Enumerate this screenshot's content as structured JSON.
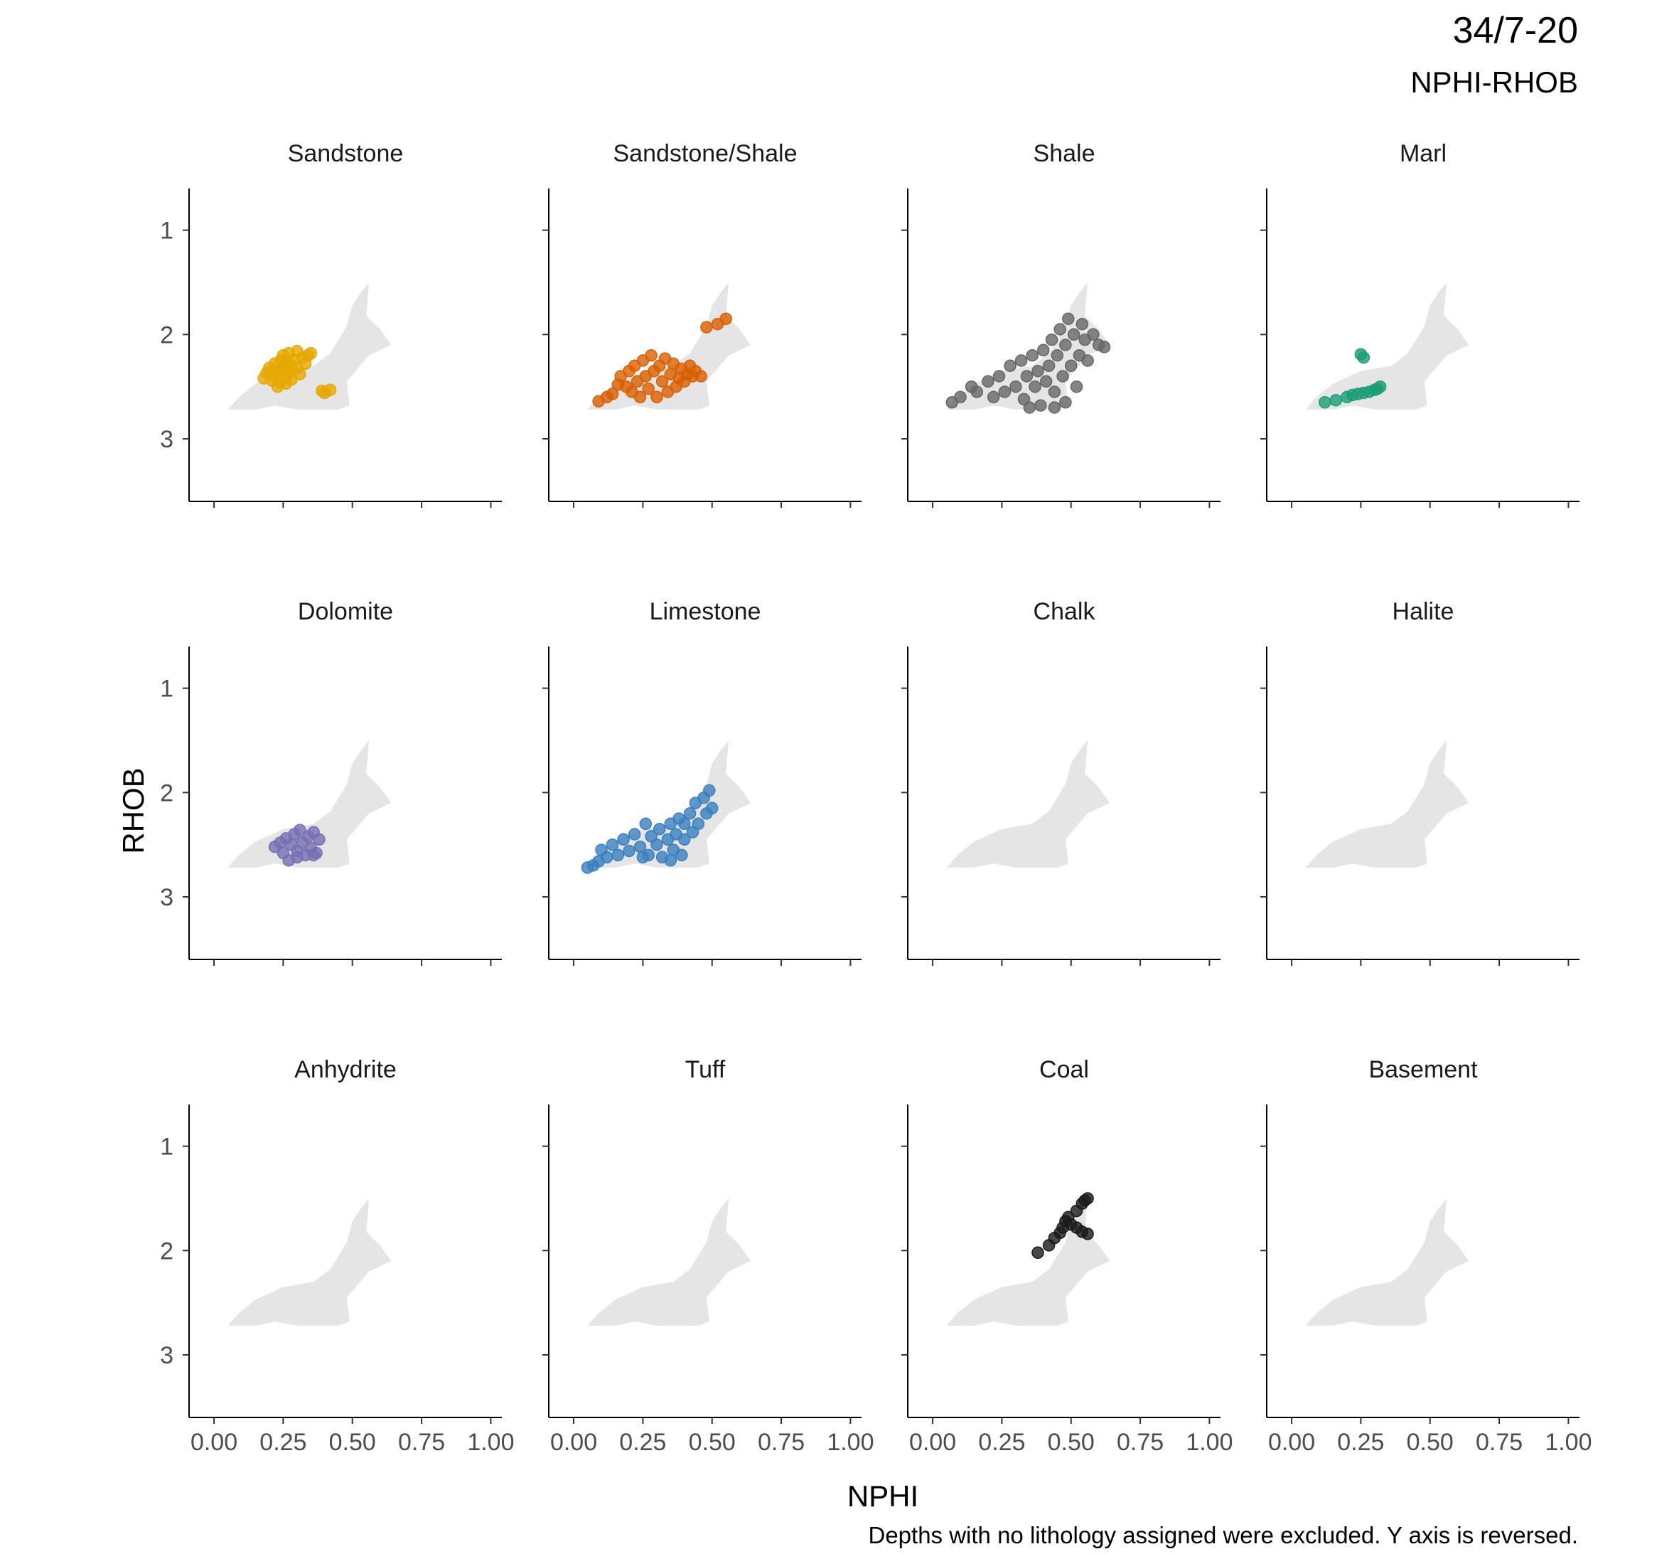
{
  "chart_data": {
    "type": "scatter",
    "title": "34/7-20",
    "subtitle": "NPHI-RHOB",
    "xlabel": "NPHI",
    "ylabel": "RHOB",
    "caption": "Depths with no lithology assigned were excluded. Y axis is reversed.",
    "xlim": [
      -0.09,
      1.04
    ],
    "ylim": [
      0.6,
      3.6
    ],
    "y_reversed": true,
    "x_ticks": [
      0.0,
      0.25,
      0.5,
      0.75,
      1.0
    ],
    "x_tick_labels": [
      "0.00",
      "0.25",
      "0.50",
      "0.75",
      "1.00"
    ],
    "y_ticks": [
      1,
      2,
      3
    ],
    "y_tick_labels": [
      "1",
      "2",
      "3"
    ],
    "grid": false,
    "background_color": "#e5e5e5",
    "background_extent": [
      [
        0.05,
        2.72
      ],
      [
        0.09,
        2.6
      ],
      [
        0.15,
        2.47
      ],
      [
        0.25,
        2.35
      ],
      [
        0.36,
        2.3
      ],
      [
        0.42,
        2.18
      ],
      [
        0.48,
        1.92
      ],
      [
        0.5,
        1.72
      ],
      [
        0.53,
        1.6
      ],
      [
        0.56,
        1.5
      ],
      [
        0.55,
        1.82
      ],
      [
        0.6,
        1.95
      ],
      [
        0.64,
        2.1
      ],
      [
        0.56,
        2.2
      ],
      [
        0.48,
        2.45
      ],
      [
        0.49,
        2.68
      ],
      [
        0.45,
        2.72
      ],
      [
        0.3,
        2.72
      ],
      [
        0.22,
        2.68
      ],
      [
        0.15,
        2.72
      ]
    ],
    "facets": [
      {
        "name": "Sandstone",
        "color": "#E6A800",
        "points": [
          [
            0.18,
            2.42
          ],
          [
            0.19,
            2.37
          ],
          [
            0.2,
            2.32
          ],
          [
            0.21,
            2.44
          ],
          [
            0.22,
            2.28
          ],
          [
            0.22,
            2.4
          ],
          [
            0.23,
            2.35
          ],
          [
            0.24,
            2.25
          ],
          [
            0.24,
            2.46
          ],
          [
            0.25,
            2.33
          ],
          [
            0.25,
            2.2
          ],
          [
            0.26,
            2.41
          ],
          [
            0.26,
            2.27
          ],
          [
            0.27,
            2.36
          ],
          [
            0.27,
            2.18
          ],
          [
            0.28,
            2.3
          ],
          [
            0.28,
            2.43
          ],
          [
            0.29,
            2.24
          ],
          [
            0.3,
            2.32
          ],
          [
            0.3,
            2.16
          ],
          [
            0.31,
            2.38
          ],
          [
            0.32,
            2.22
          ],
          [
            0.33,
            2.28
          ],
          [
            0.34,
            2.2
          ],
          [
            0.35,
            2.18
          ],
          [
            0.23,
            2.5
          ],
          [
            0.26,
            2.47
          ],
          [
            0.39,
            2.54
          ],
          [
            0.42,
            2.53
          ],
          [
            0.4,
            2.56
          ]
        ]
      },
      {
        "name": "Sandstone/Shale",
        "color": "#D95F02",
        "points": [
          [
            0.12,
            2.6
          ],
          [
            0.14,
            2.57
          ],
          [
            0.16,
            2.48
          ],
          [
            0.17,
            2.4
          ],
          [
            0.19,
            2.5
          ],
          [
            0.2,
            2.35
          ],
          [
            0.21,
            2.55
          ],
          [
            0.22,
            2.3
          ],
          [
            0.23,
            2.45
          ],
          [
            0.24,
            2.6
          ],
          [
            0.25,
            2.25
          ],
          [
            0.26,
            2.4
          ],
          [
            0.27,
            2.52
          ],
          [
            0.28,
            2.2
          ],
          [
            0.29,
            2.35
          ],
          [
            0.3,
            2.6
          ],
          [
            0.31,
            2.3
          ],
          [
            0.32,
            2.45
          ],
          [
            0.33,
            2.23
          ],
          [
            0.34,
            2.55
          ],
          [
            0.35,
            2.38
          ],
          [
            0.36,
            2.28
          ],
          [
            0.37,
            2.5
          ],
          [
            0.38,
            2.42
          ],
          [
            0.39,
            2.33
          ],
          [
            0.4,
            2.45
          ],
          [
            0.41,
            2.38
          ],
          [
            0.42,
            2.3
          ],
          [
            0.43,
            2.4
          ],
          [
            0.44,
            2.35
          ],
          [
            0.46,
            2.4
          ],
          [
            0.48,
            1.93
          ],
          [
            0.52,
            1.9
          ],
          [
            0.55,
            1.85
          ],
          [
            0.09,
            2.64
          ]
        ]
      },
      {
        "name": "Shale",
        "color": "#666666",
        "points": [
          [
            0.07,
            2.65
          ],
          [
            0.1,
            2.6
          ],
          [
            0.14,
            2.5
          ],
          [
            0.16,
            2.55
          ],
          [
            0.2,
            2.45
          ],
          [
            0.22,
            2.6
          ],
          [
            0.24,
            2.4
          ],
          [
            0.26,
            2.55
          ],
          [
            0.28,
            2.3
          ],
          [
            0.3,
            2.5
          ],
          [
            0.32,
            2.25
          ],
          [
            0.33,
            2.62
          ],
          [
            0.34,
            2.4
          ],
          [
            0.36,
            2.2
          ],
          [
            0.37,
            2.5
          ],
          [
            0.38,
            2.35
          ],
          [
            0.39,
            2.68
          ],
          [
            0.4,
            2.15
          ],
          [
            0.41,
            2.45
          ],
          [
            0.42,
            2.3
          ],
          [
            0.43,
            2.05
          ],
          [
            0.44,
            2.55
          ],
          [
            0.45,
            2.2
          ],
          [
            0.46,
            1.95
          ],
          [
            0.47,
            2.4
          ],
          [
            0.48,
            2.1
          ],
          [
            0.49,
            1.85
          ],
          [
            0.5,
            2.3
          ],
          [
            0.51,
            2.0
          ],
          [
            0.52,
            2.5
          ],
          [
            0.53,
            2.2
          ],
          [
            0.54,
            1.9
          ],
          [
            0.55,
            2.05
          ],
          [
            0.56,
            2.25
          ],
          [
            0.58,
            2.0
          ],
          [
            0.6,
            2.1
          ],
          [
            0.62,
            2.12
          ],
          [
            0.44,
            2.7
          ],
          [
            0.48,
            2.65
          ],
          [
            0.35,
            2.7
          ]
        ]
      },
      {
        "name": "Marl",
        "color": "#1B9E77",
        "points": [
          [
            0.12,
            2.65
          ],
          [
            0.16,
            2.63
          ],
          [
            0.2,
            2.6
          ],
          [
            0.22,
            2.58
          ],
          [
            0.24,
            2.57
          ],
          [
            0.26,
            2.56
          ],
          [
            0.28,
            2.55
          ],
          [
            0.3,
            2.53
          ],
          [
            0.31,
            2.52
          ],
          [
            0.32,
            2.5
          ],
          [
            0.25,
            2.19
          ],
          [
            0.26,
            2.22
          ]
        ]
      },
      {
        "name": "Dolomite",
        "color": "#7570B3",
        "points": [
          [
            0.22,
            2.52
          ],
          [
            0.24,
            2.48
          ],
          [
            0.25,
            2.58
          ],
          [
            0.26,
            2.44
          ],
          [
            0.27,
            2.65
          ],
          [
            0.28,
            2.5
          ],
          [
            0.29,
            2.4
          ],
          [
            0.3,
            2.56
          ],
          [
            0.31,
            2.36
          ],
          [
            0.32,
            2.48
          ],
          [
            0.33,
            2.6
          ],
          [
            0.34,
            2.42
          ],
          [
            0.35,
            2.53
          ],
          [
            0.36,
            2.38
          ],
          [
            0.37,
            2.58
          ],
          [
            0.38,
            2.45
          ],
          [
            0.3,
            2.62
          ],
          [
            0.36,
            2.6
          ]
        ]
      },
      {
        "name": "Limestone",
        "color": "#3A7FBF",
        "points": [
          [
            0.05,
            2.72
          ],
          [
            0.07,
            2.7
          ],
          [
            0.09,
            2.66
          ],
          [
            0.1,
            2.55
          ],
          [
            0.12,
            2.62
          ],
          [
            0.14,
            2.5
          ],
          [
            0.16,
            2.6
          ],
          [
            0.18,
            2.45
          ],
          [
            0.2,
            2.56
          ],
          [
            0.22,
            2.4
          ],
          [
            0.24,
            2.52
          ],
          [
            0.26,
            2.3
          ],
          [
            0.27,
            2.6
          ],
          [
            0.28,
            2.42
          ],
          [
            0.3,
            2.5
          ],
          [
            0.31,
            2.35
          ],
          [
            0.32,
            2.62
          ],
          [
            0.34,
            2.45
          ],
          [
            0.35,
            2.3
          ],
          [
            0.36,
            2.55
          ],
          [
            0.37,
            2.4
          ],
          [
            0.38,
            2.25
          ],
          [
            0.39,
            2.6
          ],
          [
            0.4,
            2.45
          ],
          [
            0.42,
            2.2
          ],
          [
            0.43,
            2.38
          ],
          [
            0.44,
            2.1
          ],
          [
            0.45,
            2.3
          ],
          [
            0.47,
            2.05
          ],
          [
            0.48,
            2.2
          ],
          [
            0.49,
            1.98
          ],
          [
            0.5,
            2.15
          ],
          [
            0.35,
            2.65
          ],
          [
            0.25,
            2.62
          ],
          [
            0.4,
            2.3
          ]
        ]
      },
      {
        "name": "Chalk",
        "color": "#999999",
        "points": []
      },
      {
        "name": "Halite",
        "color": "#999999",
        "points": []
      },
      {
        "name": "Anhydrite",
        "color": "#999999",
        "points": []
      },
      {
        "name": "Tuff",
        "color": "#999999",
        "points": []
      },
      {
        "name": "Coal",
        "color": "#1a1a1a",
        "points": [
          [
            0.38,
            2.02
          ],
          [
            0.42,
            1.95
          ],
          [
            0.44,
            1.88
          ],
          [
            0.46,
            1.83
          ],
          [
            0.47,
            1.78
          ],
          [
            0.48,
            1.72
          ],
          [
            0.49,
            1.68
          ],
          [
            0.5,
            1.75
          ],
          [
            0.52,
            1.78
          ],
          [
            0.54,
            1.82
          ],
          [
            0.56,
            1.84
          ],
          [
            0.52,
            1.62
          ],
          [
            0.54,
            1.55
          ],
          [
            0.56,
            1.5
          ],
          [
            0.55,
            1.52
          ]
        ]
      },
      {
        "name": "Basement",
        "color": "#999999",
        "points": []
      }
    ]
  }
}
